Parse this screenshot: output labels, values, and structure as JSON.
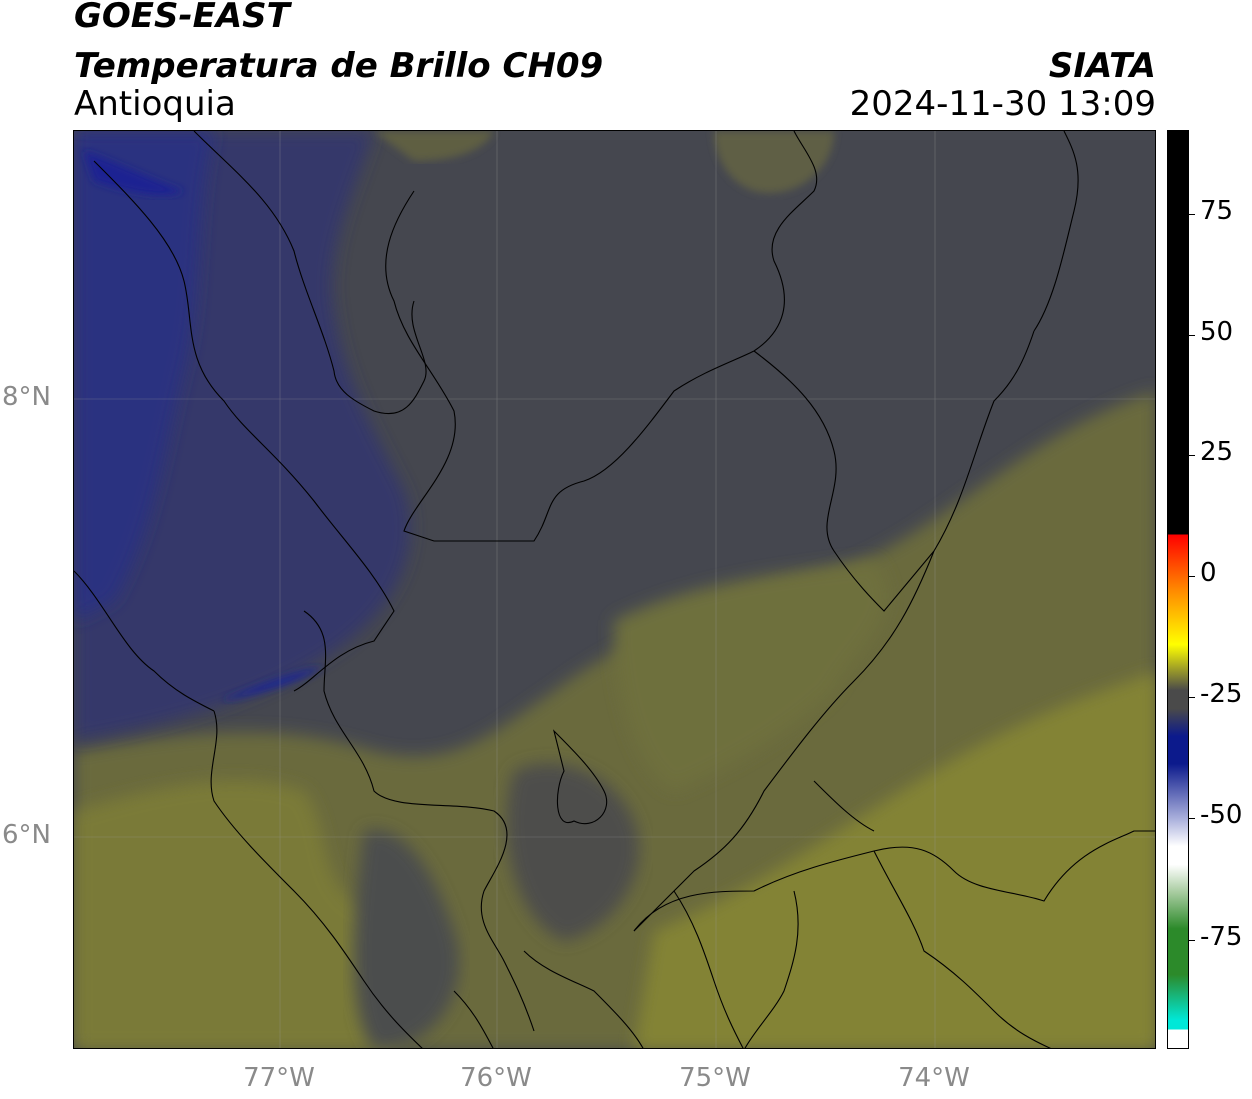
{
  "header": {
    "satellite": "GOES-EAST",
    "product": "Temperatura de Brillo CH09",
    "organization": "SIATA",
    "region": "Antioquia",
    "datetime": "2024-11-30 13:09"
  },
  "map": {
    "lat_labels": [
      "8°N",
      "6°N"
    ],
    "lon_labels": [
      "77°W",
      "76°W",
      "75°W",
      "74°W"
    ],
    "colors": {
      "dark_gray": "#45474f",
      "navy": "#30346a",
      "deep_blue": "#1c2a80",
      "olive": "#6d6e3a",
      "yellow_olive": "#858533"
    }
  },
  "colorbar": {
    "ticks": [
      "75",
      "50",
      "25",
      "0",
      "-25",
      "-50",
      "-75"
    ],
    "colors": [
      "#000000",
      "#ff0000",
      "#ff8800",
      "#ffff00",
      "#4a4a4a",
      "#0c1a8c",
      "#ffffff",
      "#2c8a2a",
      "#00e8d8"
    ]
  }
}
